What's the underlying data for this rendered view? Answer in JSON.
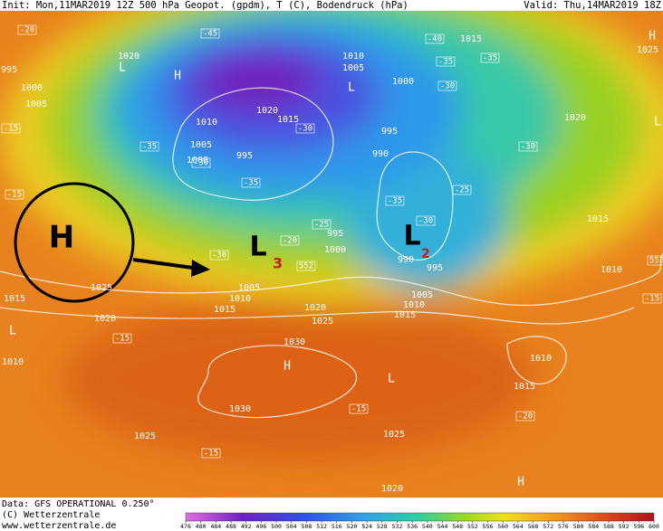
{
  "header": {
    "left": "Init: Mon,11MAR2019 12Z 500 hPa Geopot. (gpdm), T (C), Bodendruck (hPa)",
    "right": "Valid: Thu,14MAR2019 18Z"
  },
  "footer": {
    "data": "Data: GFS OPERATIONAL 0.250°",
    "copyright": "(C) Wetterzentrale",
    "url": "www.wetterzentrale.de"
  },
  "scale": {
    "labels": [
      476,
      480,
      484,
      488,
      492,
      496,
      500,
      504,
      508,
      512,
      516,
      520,
      524,
      528,
      532,
      536,
      540,
      544,
      548,
      552,
      556,
      560,
      564,
      568,
      572,
      576,
      580,
      584,
      588,
      592,
      596,
      600
    ]
  },
  "annotations": {
    "high": "H",
    "low3": "L",
    "low3_index": "3",
    "low2": "L",
    "low2_index": "2"
  },
  "isobars": [
    "1020",
    "995",
    "1000",
    "1005",
    "1010",
    "1005",
    "1000",
    "1020",
    "1015",
    "995",
    "1010",
    "1005",
    "1000",
    "1015",
    "995",
    "990",
    "1020",
    "1015",
    "1010",
    "1025",
    "995",
    "1000",
    "990",
    "995",
    "1005",
    "1010",
    "1015",
    "1020",
    "1025",
    "1030",
    "1010",
    "1005",
    "1015",
    "1020",
    "1025",
    "1015",
    "1010",
    "1030",
    "1025",
    "1025",
    "1020",
    "1010",
    "1015"
  ],
  "temperatures": [
    "-20",
    "-45",
    "-40",
    "-35",
    "-30",
    "-35",
    "-15",
    "-35",
    "-30",
    "-35",
    "-30",
    "-25",
    "-20",
    "-30",
    "-35",
    "-30",
    "-25",
    "-30",
    "-15",
    "-15",
    "-15",
    "-15",
    "-20",
    "-15",
    "552",
    "552"
  ],
  "centers": [
    "L",
    "H",
    "L",
    "H",
    "L",
    "L",
    "H",
    "L",
    "H"
  ]
}
